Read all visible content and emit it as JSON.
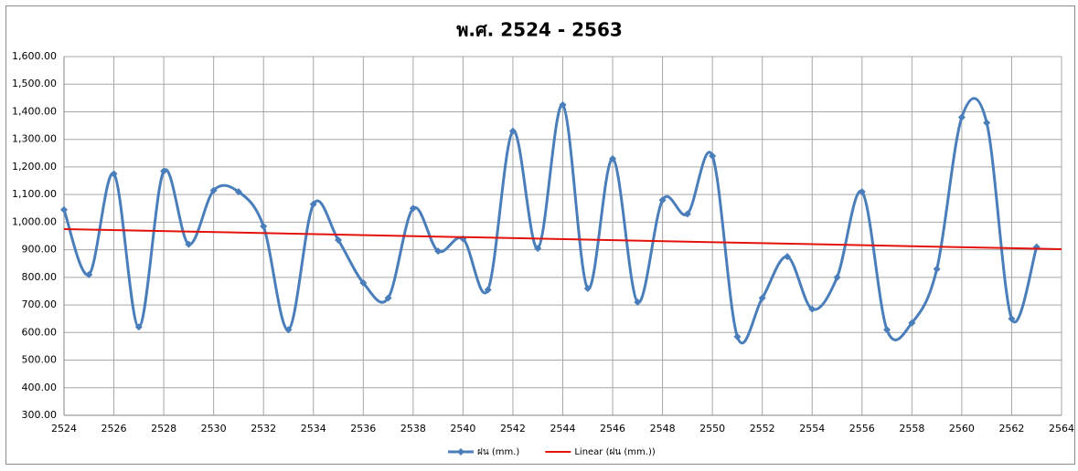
{
  "chart_data": {
    "type": "line",
    "title": "พ.ศ. 2524 - 2563",
    "x": [
      2524,
      2525,
      2526,
      2527,
      2528,
      2529,
      2530,
      2531,
      2532,
      2533,
      2534,
      2535,
      2536,
      2537,
      2538,
      2539,
      2540,
      2541,
      2542,
      2543,
      2544,
      2545,
      2546,
      2547,
      2548,
      2549,
      2550,
      2551,
      2552,
      2553,
      2554,
      2555,
      2556,
      2557,
      2558,
      2559,
      2560,
      2561,
      2562,
      2563
    ],
    "series": [
      {
        "name": "ฝน (mm.)",
        "color": "#4a7ebb",
        "smooth": true,
        "marker": "diamond",
        "values": [
          1045,
          810,
          1175,
          620,
          1185,
          920,
          1115,
          1110,
          985,
          610,
          1065,
          935,
          780,
          725,
          1050,
          895,
          940,
          755,
          1330,
          905,
          1425,
          760,
          1230,
          710,
          1080,
          1030,
          1240,
          585,
          725,
          875,
          685,
          800,
          1110,
          610,
          635,
          830,
          1380,
          1360,
          650,
          910
        ]
      },
      {
        "name": "Linear (ฝน (mm.))",
        "color": "#e3120b",
        "x": [
          2524,
          2564
        ],
        "values": [
          975,
          902
        ]
      }
    ],
    "xlim": [
      2524,
      2564
    ],
    "xticks": [
      2524,
      2526,
      2528,
      2530,
      2532,
      2534,
      2536,
      2538,
      2540,
      2542,
      2544,
      2546,
      2548,
      2550,
      2552,
      2554,
      2556,
      2558,
      2560,
      2562,
      2564
    ],
    "ylim": [
      300,
      1600
    ],
    "yticks": [
      {
        "value": 300,
        "label": "300.00"
      },
      {
        "value": 400,
        "label": "400.00"
      },
      {
        "value": 500,
        "label": "500.00"
      },
      {
        "value": 600,
        "label": "600.00"
      },
      {
        "value": 700,
        "label": "700.00"
      },
      {
        "value": 800,
        "label": "800.00"
      },
      {
        "value": 900,
        "label": "900.00"
      },
      {
        "value": 1000,
        "label": "1,000.00"
      },
      {
        "value": 1100,
        "label": "1,100.00"
      },
      {
        "value": 1200,
        "label": "1,200.00"
      },
      {
        "value": 1300,
        "label": "1,300.00"
      },
      {
        "value": 1400,
        "label": "1,400.00"
      },
      {
        "value": 1500,
        "label": "1,500.00"
      },
      {
        "value": 1600,
        "label": "1,600.00"
      }
    ],
    "grid": true,
    "legend": "bottom"
  }
}
